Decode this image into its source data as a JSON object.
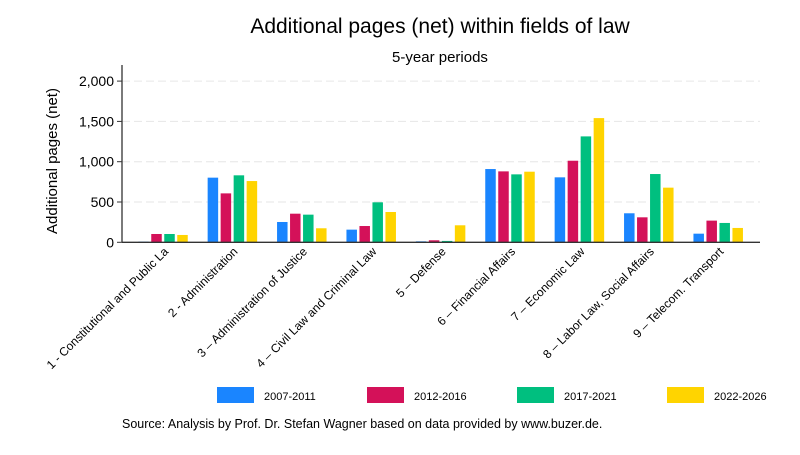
{
  "chart_data": {
    "type": "bar",
    "title": "Additional pages (net) within fields of law",
    "subtitle": "5-year periods",
    "xlabel": "",
    "ylabel": "Additional pages (net)",
    "ylim": [
      0,
      2200
    ],
    "yticks": [
      0,
      500,
      1000,
      1500,
      2000
    ],
    "ytick_labels": [
      "0",
      "500",
      "1,000",
      "1,500",
      "2,000"
    ],
    "grid": true,
    "legend_position": "bottom",
    "categories": [
      "1 - Constitutional and Public La",
      "2 - Administration",
      "3 – Administration of Justice",
      "4 – Civil Law and Criminal Law",
      "5 – Defense",
      "6 – Financial Affairs",
      "7 – Economic Law",
      "8 – Labor Law, Social Affairs",
      "9 – Telecom. Transport"
    ],
    "series": [
      {
        "name": "2007-2011",
        "color": "#1a85ff",
        "values": [
          8,
          802,
          252,
          157,
          12,
          909,
          806,
          360,
          107
        ]
      },
      {
        "name": "2012-2016",
        "color": "#d41159",
        "values": [
          103,
          607,
          355,
          202,
          25,
          880,
          1012,
          310,
          269
        ]
      },
      {
        "name": "2017-2021",
        "color": "#00bf7f",
        "values": [
          103,
          831,
          343,
          496,
          17,
          843,
          1314,
          847,
          240
        ]
      },
      {
        "name": "2022-2026",
        "color": "#ffd400",
        "values": [
          91,
          760,
          174,
          376,
          211,
          876,
          1541,
          678,
          178
        ]
      }
    ],
    "note": "Source: Analysis by Prof. Dr. Stefan Wagner based on data provided by www.buzer.de."
  }
}
